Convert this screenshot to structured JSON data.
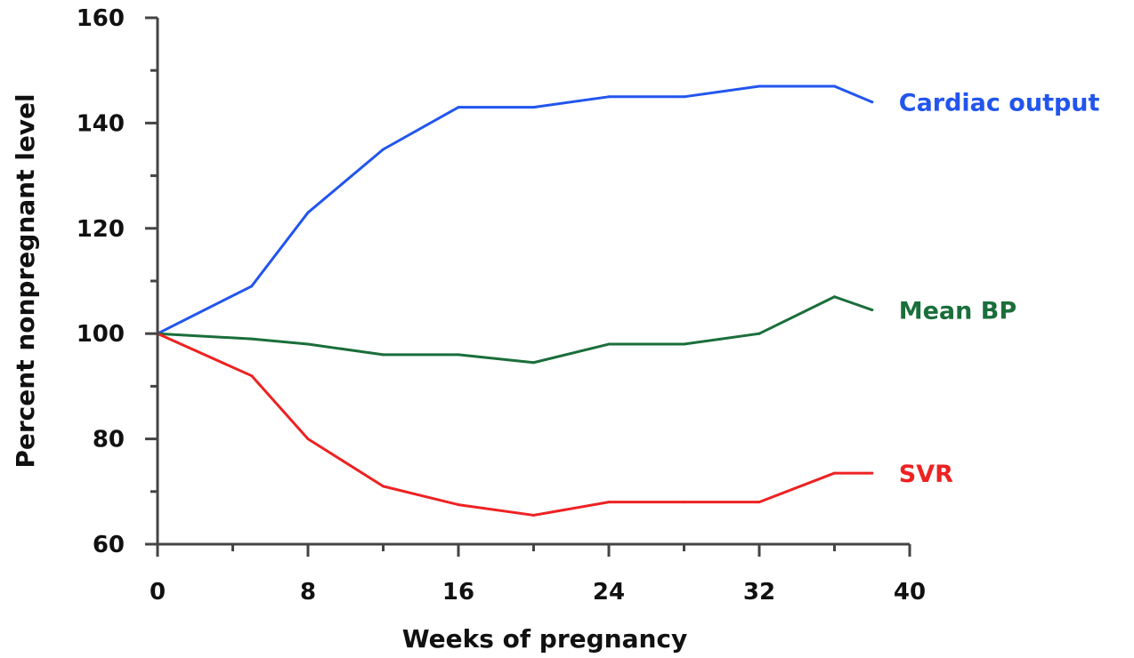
{
  "chart_data": {
    "type": "line",
    "xlabel": "Weeks of pregnancy",
    "ylabel": "Percent nonpregnant level",
    "xlim": [
      0,
      40
    ],
    "ylim": [
      60,
      160
    ],
    "x_ticks": [
      0,
      8,
      16,
      24,
      32,
      40
    ],
    "y_ticks": [
      60,
      80,
      100,
      120,
      140,
      160
    ],
    "x_minor_step": 4,
    "y_minor_step": 10,
    "grid": false,
    "legend": "inline labels at right end of each line",
    "series": [
      {
        "name": "Cardiac output",
        "color": "#2255ee",
        "points": [
          [
            0,
            100
          ],
          [
            5,
            109
          ],
          [
            8,
            123
          ],
          [
            12,
            135
          ],
          [
            16,
            143
          ],
          [
            20,
            143
          ],
          [
            24,
            145
          ],
          [
            28,
            145
          ],
          [
            32,
            147
          ],
          [
            36,
            147
          ],
          [
            38,
            144
          ]
        ]
      },
      {
        "name": "Mean BP",
        "color": "#1a6e3a",
        "points": [
          [
            0,
            100
          ],
          [
            5,
            99
          ],
          [
            8,
            98
          ],
          [
            12,
            96
          ],
          [
            16,
            96
          ],
          [
            20,
            94.5
          ],
          [
            24,
            98
          ],
          [
            28,
            98
          ],
          [
            32,
            100
          ],
          [
            36,
            107
          ],
          [
            38,
            104.5
          ]
        ]
      },
      {
        "name": "SVR",
        "color": "#ee2222",
        "points": [
          [
            0,
            100
          ],
          [
            5,
            92
          ],
          [
            8,
            80
          ],
          [
            12,
            71
          ],
          [
            16,
            67.5
          ],
          [
            20,
            65.5
          ],
          [
            24,
            68
          ],
          [
            28,
            68
          ],
          [
            32,
            68
          ],
          [
            36,
            73.5
          ],
          [
            38,
            73.5
          ]
        ]
      }
    ]
  }
}
